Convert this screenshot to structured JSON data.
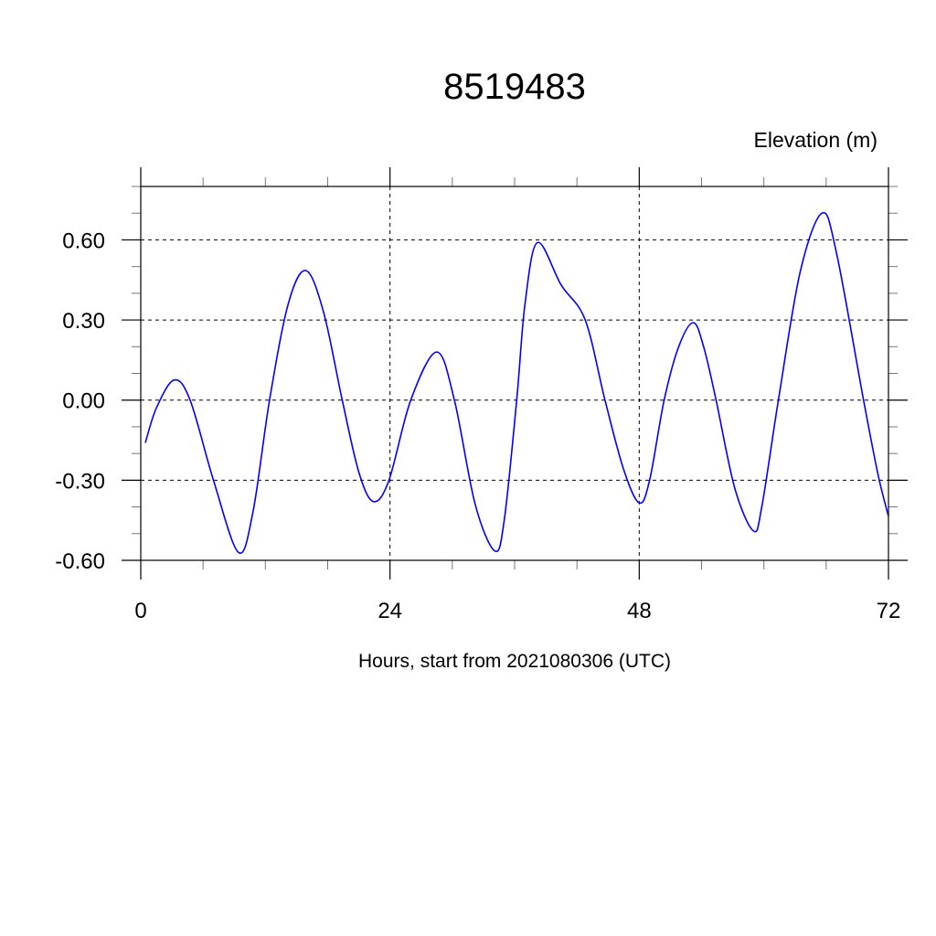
{
  "chart_data": {
    "type": "line",
    "title": "8519483",
    "ylabel": "Elevation (m)",
    "xlabel": "Hours, start from 2021080306 (UTC)",
    "xlim": [
      0,
      72
    ],
    "ylim": [
      -0.6,
      0.8
    ],
    "x_ticks": [
      0,
      24,
      48,
      72
    ],
    "x_tick_labels": [
      "0",
      "24",
      "48",
      "72"
    ],
    "x_minor_step": 6,
    "y_ticks": [
      -0.6,
      -0.3,
      0.0,
      0.3,
      0.6
    ],
    "y_tick_labels": [
      "-0.60",
      "-0.30",
      "0.00",
      "0.30",
      "0.60"
    ],
    "y_minor_step": 0.1,
    "grid": true,
    "line_color": "#0000ff",
    "series": [
      {
        "x": [
          0.44,
          1.5,
          3.2,
          4.75,
          7.0,
          9.4,
          10.8,
          12.4,
          14.2,
          15.9,
          17.6,
          19.4,
          21.0,
          22.4,
          23.9,
          26.0,
          28.5,
          30.2,
          32.2,
          34.1,
          35.0,
          36.2,
          37.0,
          38.2,
          40.5,
          42.8,
          44.7,
          46.5,
          48.0,
          49.0,
          50.4,
          51.8,
          53.2,
          54.2,
          55.4,
          57.2,
          59.0,
          59.8,
          61.4,
          63.5,
          65.6,
          67.0,
          69.6,
          71.0,
          72.0
        ],
        "y": [
          -0.16,
          -0.03,
          0.075,
          0.0,
          -0.3,
          -0.57,
          -0.42,
          0.0,
          0.36,
          0.485,
          0.33,
          0.0,
          -0.27,
          -0.38,
          -0.3,
          0.0,
          0.18,
          0.0,
          -0.39,
          -0.565,
          -0.45,
          0.0,
          0.36,
          0.59,
          0.43,
          0.3,
          0.0,
          -0.26,
          -0.385,
          -0.3,
          0.0,
          0.2,
          0.29,
          0.2,
          0.0,
          -0.33,
          -0.49,
          -0.4,
          0.0,
          0.48,
          0.7,
          0.55,
          0.0,
          -0.28,
          -0.435
        ]
      }
    ]
  }
}
